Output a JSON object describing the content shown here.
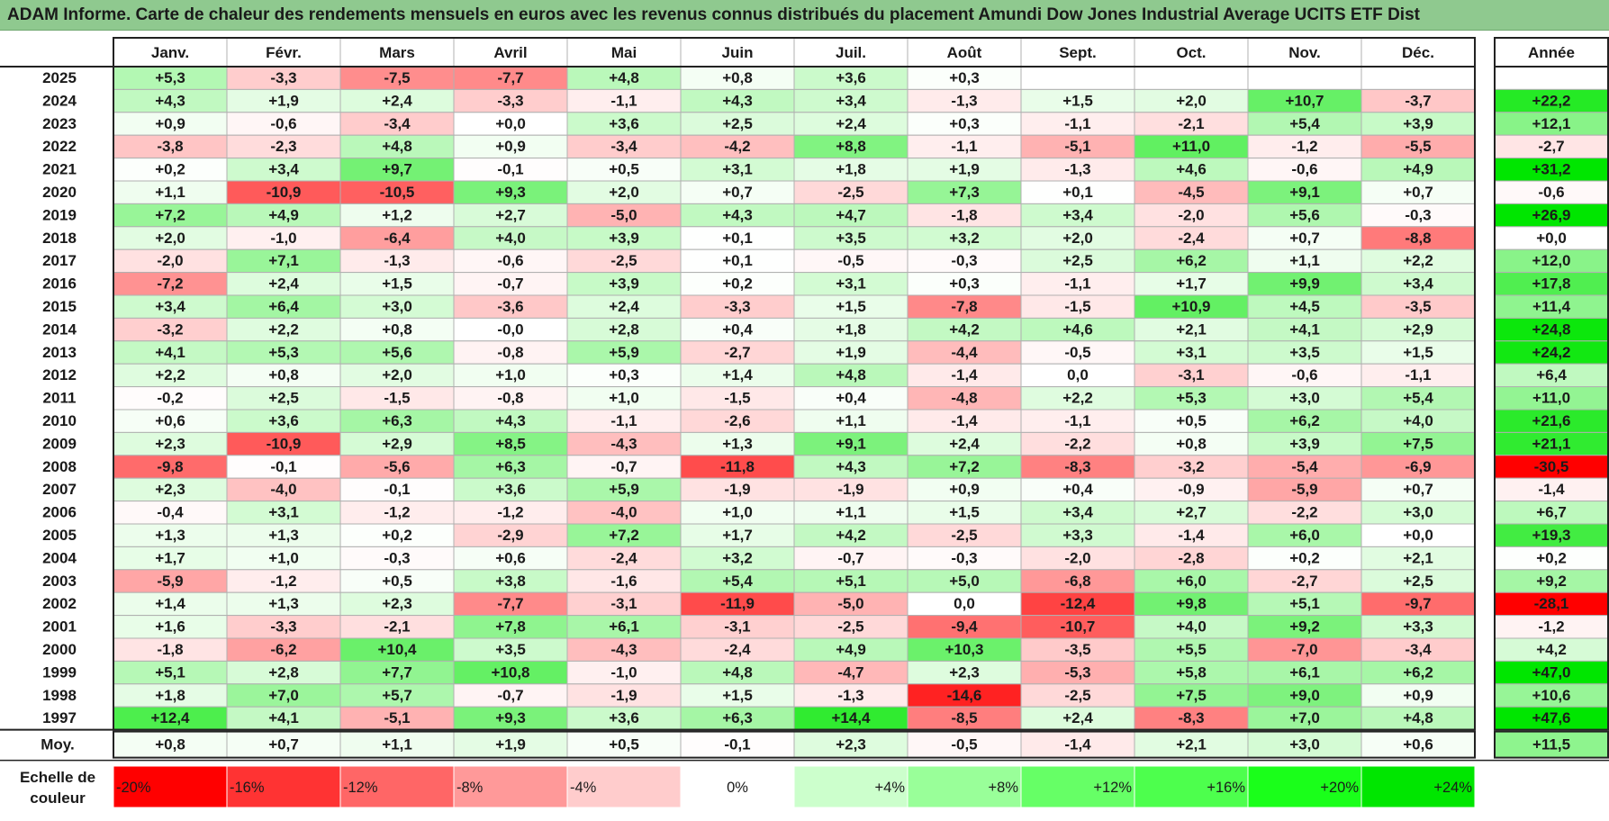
{
  "title": "ADAM Informe. Carte de chaleur des rendements mensuels en euros avec les revenus connus distribués du placement Amundi Dow Jones Industrial Average UCITS ETF Dist",
  "chart_data": {
    "type": "heatmap",
    "title": "ADAM Informe. Carte de chaleur des rendements mensuels en euros avec les revenus connus distribués du placement Amundi Dow Jones Industrial Average UCITS ETF Dist",
    "months": [
      "Janv.",
      "Févr.",
      "Mars",
      "Avril",
      "Mai",
      "Juin",
      "Juil.",
      "Août",
      "Sept.",
      "Oct.",
      "Nov.",
      "Déc."
    ],
    "year_header": "Année",
    "rows": [
      {
        "year": "2025",
        "values": [
          "+5,3",
          "-3,3",
          "-7,5",
          "-7,7",
          "+4,8",
          "+0,8",
          "+3,6",
          "+0,3",
          "",
          "",
          "",
          ""
        ],
        "annual": ""
      },
      {
        "year": "2024",
        "values": [
          "+4,3",
          "+1,9",
          "+2,4",
          "-3,3",
          "-1,1",
          "+4,3",
          "+3,4",
          "-1,3",
          "+1,5",
          "+2,0",
          "+10,7",
          "-3,7"
        ],
        "annual": "+22,2"
      },
      {
        "year": "2023",
        "values": [
          "+0,9",
          "-0,6",
          "-3,4",
          "+0,0",
          "+3,6",
          "+2,5",
          "+2,4",
          "+0,3",
          "-1,1",
          "-2,1",
          "+5,4",
          "+3,9"
        ],
        "annual": "+12,1"
      },
      {
        "year": "2022",
        "values": [
          "-3,8",
          "-2,3",
          "+4,8",
          "+0,9",
          "-3,4",
          "-4,2",
          "+8,8",
          "-1,1",
          "-5,1",
          "+11,0",
          "-1,2",
          "-5,5"
        ],
        "annual": "-2,7"
      },
      {
        "year": "2021",
        "values": [
          "+0,2",
          "+3,4",
          "+9,7",
          "-0,1",
          "+0,5",
          "+3,1",
          "+1,8",
          "+1,9",
          "-1,3",
          "+4,6",
          "-0,6",
          "+4,9"
        ],
        "annual": "+31,2"
      },
      {
        "year": "2020",
        "values": [
          "+1,1",
          "-10,9",
          "-10,5",
          "+9,3",
          "+2,0",
          "+0,7",
          "-2,5",
          "+7,3",
          "+0,1",
          "-4,5",
          "+9,1",
          "+0,7"
        ],
        "annual": "-0,6"
      },
      {
        "year": "2019",
        "values": [
          "+7,2",
          "+4,9",
          "+1,2",
          "+2,7",
          "-5,0",
          "+4,3",
          "+4,7",
          "-1,8",
          "+3,4",
          "-2,0",
          "+5,6",
          "-0,3"
        ],
        "annual": "+26,9"
      },
      {
        "year": "2018",
        "values": [
          "+2,0",
          "-1,0",
          "-6,4",
          "+4,0",
          "+3,9",
          "+0,1",
          "+3,5",
          "+3,2",
          "+2,0",
          "-2,4",
          "+0,7",
          "-8,8"
        ],
        "annual": "+0,0"
      },
      {
        "year": "2017",
        "values": [
          "-2,0",
          "+7,1",
          "-1,3",
          "-0,6",
          "-2,5",
          "+0,1",
          "-0,5",
          "-0,3",
          "+2,5",
          "+6,2",
          "+1,1",
          "+2,2"
        ],
        "annual": "+12,0"
      },
      {
        "year": "2016",
        "values": [
          "-7,2",
          "+2,4",
          "+1,5",
          "-0,7",
          "+3,9",
          "+0,2",
          "+3,1",
          "+0,3",
          "-1,1",
          "+1,7",
          "+9,9",
          "+3,4"
        ],
        "annual": "+17,8"
      },
      {
        "year": "2015",
        "values": [
          "+3,4",
          "+6,4",
          "+3,0",
          "-3,6",
          "+2,4",
          "-3,3",
          "+1,5",
          "-7,8",
          "-1,5",
          "+10,9",
          "+4,5",
          "-3,5"
        ],
        "annual": "+11,4"
      },
      {
        "year": "2014",
        "values": [
          "-3,2",
          "+2,2",
          "+0,8",
          "-0,0",
          "+2,8",
          "+0,4",
          "+1,8",
          "+4,2",
          "+4,6",
          "+2,1",
          "+4,1",
          "+2,9"
        ],
        "annual": "+24,8"
      },
      {
        "year": "2013",
        "values": [
          "+4,1",
          "+5,3",
          "+5,6",
          "-0,8",
          "+5,9",
          "-2,7",
          "+1,9",
          "-4,4",
          "-0,5",
          "+3,1",
          "+3,5",
          "+1,5"
        ],
        "annual": "+24,2"
      },
      {
        "year": "2012",
        "values": [
          "+2,2",
          "+0,8",
          "+2,0",
          "+1,0",
          "+0,3",
          "+1,4",
          "+4,8",
          "-1,4",
          "0,0",
          "-3,1",
          "-0,6",
          "-1,1"
        ],
        "annual": "+6,4"
      },
      {
        "year": "2011",
        "values": [
          "-0,2",
          "+2,5",
          "-1,5",
          "-0,8",
          "+1,0",
          "-1,5",
          "+0,4",
          "-4,8",
          "+2,2",
          "+5,3",
          "+3,0",
          "+5,4"
        ],
        "annual": "+11,0"
      },
      {
        "year": "2010",
        "values": [
          "+0,6",
          "+3,6",
          "+6,3",
          "+4,3",
          "-1,1",
          "-2,6",
          "+1,1",
          "-1,4",
          "-1,1",
          "+0,5",
          "+6,2",
          "+4,0"
        ],
        "annual": "+21,6"
      },
      {
        "year": "2009",
        "values": [
          "+2,3",
          "-10,9",
          "+2,9",
          "+8,5",
          "-4,3",
          "+1,3",
          "+9,1",
          "+2,4",
          "-2,2",
          "+0,8",
          "+3,9",
          "+7,5"
        ],
        "annual": "+21,1"
      },
      {
        "year": "2008",
        "values": [
          "-9,8",
          "-0,1",
          "-5,6",
          "+6,3",
          "-0,7",
          "-11,8",
          "+4,3",
          "+7,2",
          "-8,3",
          "-3,2",
          "-5,4",
          "-6,9"
        ],
        "annual": "-30,5"
      },
      {
        "year": "2007",
        "values": [
          "+2,3",
          "-4,0",
          "-0,1",
          "+3,6",
          "+5,9",
          "-1,9",
          "-1,9",
          "+0,9",
          "+0,4",
          "-0,9",
          "-5,9",
          "+0,7"
        ],
        "annual": "-1,4"
      },
      {
        "year": "2006",
        "values": [
          "-0,4",
          "+3,1",
          "-1,2",
          "-1,2",
          "-4,0",
          "+1,0",
          "+1,1",
          "+1,5",
          "+3,4",
          "+2,7",
          "-2,2",
          "+3,0"
        ],
        "annual": "+6,7"
      },
      {
        "year": "2005",
        "values": [
          "+1,3",
          "+1,3",
          "+0,2",
          "-2,9",
          "+7,2",
          "+1,7",
          "+4,2",
          "-2,5",
          "+3,3",
          "-1,4",
          "+6,0",
          "+0,0"
        ],
        "annual": "+19,3"
      },
      {
        "year": "2004",
        "values": [
          "+1,7",
          "+1,0",
          "-0,3",
          "+0,6",
          "-2,4",
          "+3,2",
          "-0,7",
          "-0,3",
          "-2,0",
          "-2,8",
          "+0,2",
          "+2,1"
        ],
        "annual": "+0,2"
      },
      {
        "year": "2003",
        "values": [
          "-5,9",
          "-1,2",
          "+0,5",
          "+3,8",
          "-1,6",
          "+5,4",
          "+5,1",
          "+5,0",
          "-6,8",
          "+6,0",
          "-2,7",
          "+2,5"
        ],
        "annual": "+9,2"
      },
      {
        "year": "2002",
        "values": [
          "+1,4",
          "+1,3",
          "+2,3",
          "-7,7",
          "-3,1",
          "-11,9",
          "-5,0",
          "0,0",
          "-12,4",
          "+9,8",
          "+5,1",
          "-9,7"
        ],
        "annual": "-28,1"
      },
      {
        "year": "2001",
        "values": [
          "+1,6",
          "-3,3",
          "-2,1",
          "+7,8",
          "+6,1",
          "-3,1",
          "-2,5",
          "-9,4",
          "-10,7",
          "+4,0",
          "+9,2",
          "+3,3"
        ],
        "annual": "-1,2"
      },
      {
        "year": "2000",
        "values": [
          "-1,8",
          "-6,2",
          "+10,4",
          "+3,5",
          "-4,3",
          "-2,4",
          "+4,9",
          "+10,3",
          "-3,5",
          "+5,5",
          "-7,0",
          "-3,4"
        ],
        "annual": "+4,2"
      },
      {
        "year": "1999",
        "values": [
          "+5,1",
          "+2,8",
          "+7,7",
          "+10,8",
          "-1,0",
          "+4,8",
          "-4,7",
          "+2,3",
          "-5,3",
          "+5,8",
          "+6,1",
          "+6,2"
        ],
        "annual": "+47,0"
      },
      {
        "year": "1998",
        "values": [
          "+1,8",
          "+7,0",
          "+5,7",
          "-0,7",
          "-1,9",
          "+1,5",
          "-1,3",
          "-14,6",
          "-2,5",
          "+7,5",
          "+9,0",
          "+0,9"
        ],
        "annual": "+10,6"
      },
      {
        "year": "1997",
        "values": [
          "+12,4",
          "+4,1",
          "-5,1",
          "+9,3",
          "+3,6",
          "+6,3",
          "+14,4",
          "-8,5",
          "+2,4",
          "-8,3",
          "+7,0",
          "+4,8"
        ],
        "annual": "+47,6"
      }
    ],
    "average": {
      "label": "Moy.",
      "values": [
        "+0,8",
        "+0,7",
        "+1,1",
        "+1,9",
        "+0,5",
        "-0,1",
        "+2,3",
        "-0,5",
        "-1,4",
        "+2,1",
        "+3,0",
        "+0,6"
      ],
      "annual": "+11,5"
    },
    "scale": {
      "label_line1": "Echelle de",
      "label_line2": "couleur",
      "steps": [
        {
          "label": "-20%",
          "value": -20,
          "color": "#ff0000"
        },
        {
          "label": "-16%",
          "value": -16,
          "color": "#ff3333"
        },
        {
          "label": "-12%",
          "value": -12,
          "color": "#ff6666"
        },
        {
          "label": "-8%",
          "value": -8,
          "color": "#ff9999"
        },
        {
          "label": "-4%",
          "value": -4,
          "color": "#ffcccc"
        },
        {
          "label": "0%",
          "value": 0,
          "color": "#ffffff"
        },
        {
          "label": "+4%",
          "value": 4,
          "color": "#ccffcc"
        },
        {
          "label": "+8%",
          "value": 8,
          "color": "#99ff99"
        },
        {
          "label": "+12%",
          "value": 12,
          "color": "#66ff66"
        },
        {
          "label": "+16%",
          "value": 16,
          "color": "#4dff4d"
        },
        {
          "label": "+20%",
          "value": 20,
          "color": "#1aff1a"
        },
        {
          "label": "+24%",
          "value": 24,
          "color": "#00e600"
        }
      ]
    },
    "colors": {
      "title_bar": "#8fc98f",
      "positive_max": "#00e600",
      "negative_max": "#ff0000",
      "neutral": "#ffffff",
      "grid": "#b0b0b0"
    }
  }
}
